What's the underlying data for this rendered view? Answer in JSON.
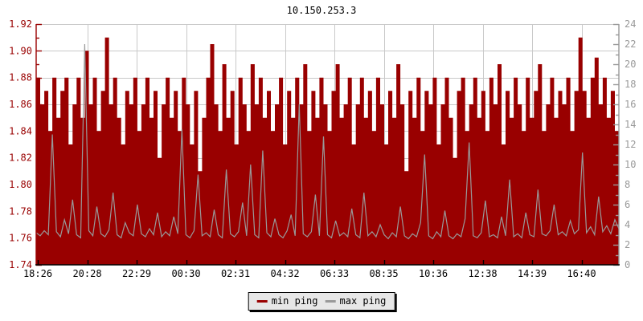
{
  "chart_data": {
    "type": "area",
    "title": "10.150.253.3",
    "background": "#ffffff",
    "grid": {
      "color": "#c9c9c9",
      "h_lines": "left-axis-major",
      "v_lines": "at-x-labels"
    },
    "x_axis": {
      "color": "#000000",
      "tick_labels": [
        "18:26",
        "20:28",
        "22:29",
        "00:30",
        "02:31",
        "04:32",
        "06:33",
        "08:35",
        "10:36",
        "12:38",
        "14:39",
        "16:40"
      ]
    },
    "left_axis": {
      "color": "#990000",
      "min": 1.74,
      "max": 1.92,
      "minor_step": 0.01,
      "major_step": 0.02,
      "tick_labels": [
        "1.92",
        "1.90",
        "1.88",
        "1.86",
        "1.84",
        "1.82",
        "1.80",
        "1.78",
        "1.76",
        "1.74"
      ]
    },
    "right_axis": {
      "color": "#999999",
      "min": 0,
      "max": 24,
      "minor_step": 1,
      "major_step": 2,
      "tick_labels": [
        "24",
        "22",
        "20",
        "18",
        "16",
        "14",
        "12",
        "10",
        "8",
        "6",
        "4",
        "2",
        "0"
      ]
    },
    "series": [
      {
        "name": "min ping",
        "axis": "left",
        "style": "area",
        "color": "#990000",
        "values": [
          1.88,
          1.86,
          1.87,
          1.84,
          1.88,
          1.85,
          1.87,
          1.88,
          1.83,
          1.86,
          1.88,
          1.85,
          1.9,
          1.86,
          1.88,
          1.84,
          1.87,
          1.91,
          1.86,
          1.88,
          1.85,
          1.83,
          1.87,
          1.86,
          1.88,
          1.84,
          1.86,
          1.88,
          1.85,
          1.87,
          1.82,
          1.86,
          1.88,
          1.85,
          1.87,
          1.84,
          1.88,
          1.86,
          1.83,
          1.87,
          1.81,
          1.85,
          1.88,
          1.905,
          1.86,
          1.84,
          1.89,
          1.85,
          1.87,
          1.83,
          1.88,
          1.86,
          1.84,
          1.89,
          1.86,
          1.88,
          1.85,
          1.87,
          1.84,
          1.86,
          1.88,
          1.83,
          1.87,
          1.85,
          1.88,
          1.86,
          1.89,
          1.84,
          1.87,
          1.85,
          1.88,
          1.86,
          1.84,
          1.87,
          1.89,
          1.85,
          1.86,
          1.88,
          1.83,
          1.86,
          1.88,
          1.85,
          1.87,
          1.84,
          1.88,
          1.86,
          1.83,
          1.87,
          1.85,
          1.89,
          1.86,
          1.81,
          1.87,
          1.85,
          1.88,
          1.84,
          1.87,
          1.86,
          1.88,
          1.83,
          1.86,
          1.88,
          1.85,
          1.82,
          1.87,
          1.88,
          1.84,
          1.86,
          1.88,
          1.85,
          1.87,
          1.84,
          1.88,
          1.86,
          1.89,
          1.83,
          1.87,
          1.85,
          1.88,
          1.86,
          1.84,
          1.88,
          1.85,
          1.87,
          1.89,
          1.84,
          1.86,
          1.88,
          1.85,
          1.87,
          1.86,
          1.88,
          1.84,
          1.87,
          1.91,
          1.87,
          1.85,
          1.88,
          1.895,
          1.86,
          1.88,
          1.85,
          1.87,
          1.84,
          1.88
        ]
      },
      {
        "name": "max ping",
        "axis": "right",
        "style": "line",
        "color": "#999999",
        "values": [
          3.2,
          2.9,
          3.4,
          3.0,
          13.0,
          3.3,
          2.8,
          4.5,
          3.1,
          6.5,
          3.0,
          2.7,
          22.0,
          3.4,
          2.9,
          5.8,
          3.1,
          2.8,
          3.5,
          7.2,
          3.0,
          2.7,
          4.2,
          3.2,
          2.9,
          6.0,
          3.1,
          2.8,
          3.6,
          3.0,
          5.2,
          2.8,
          3.3,
          2.9,
          4.8,
          3.1,
          13.5,
          3.0,
          2.7,
          3.4,
          9.0,
          2.9,
          3.2,
          2.8,
          5.5,
          3.0,
          2.7,
          9.5,
          3.1,
          2.8,
          3.3,
          6.2,
          2.9,
          10.0,
          3.0,
          2.7,
          11.4,
          3.2,
          2.8,
          4.6,
          3.0,
          2.7,
          3.4,
          5.0,
          2.9,
          16.0,
          3.1,
          2.8,
          3.3,
          7.0,
          2.9,
          12.8,
          3.0,
          2.7,
          4.4,
          2.9,
          3.2,
          2.8,
          5.6,
          3.0,
          2.7,
          7.2,
          2.9,
          3.3,
          2.8,
          4.0,
          3.0,
          2.6,
          3.2,
          2.8,
          5.8,
          2.9,
          2.6,
          3.1,
          2.8,
          4.2,
          11.0,
          2.9,
          2.6,
          3.3,
          2.8,
          5.4,
          2.9,
          2.6,
          3.1,
          2.8,
          4.6,
          12.2,
          2.9,
          2.7,
          3.2,
          6.4,
          2.8,
          3.0,
          2.7,
          4.8,
          2.9,
          8.5,
          2.8,
          3.1,
          2.7,
          5.2,
          3.0,
          2.8,
          7.5,
          3.1,
          2.9,
          3.4,
          6.0,
          3.0,
          3.3,
          2.9,
          4.4,
          3.1,
          3.5,
          11.2,
          3.2,
          3.8,
          3.0,
          6.8,
          3.3,
          3.9,
          3.1,
          4.5,
          3.6
        ]
      }
    ]
  }
}
